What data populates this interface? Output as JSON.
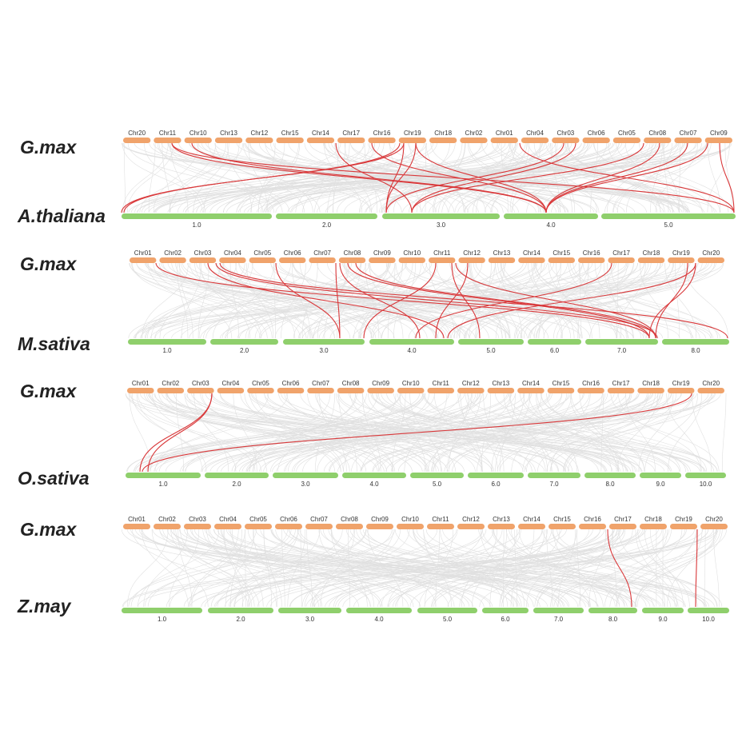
{
  "panels": [
    {
      "top_species": "G.max",
      "bottom_species": "A.thaliana",
      "top_chromosomes": [
        "Chr20",
        "Chr11",
        "Chr10",
        "Chr13",
        "Chr12",
        "Chr15",
        "Chr14",
        "Chr17",
        "Chr16",
        "Chr19",
        "Chr18",
        "Chr02",
        "Chr01",
        "Chr04",
        "Chr03",
        "Chr06",
        "Chr05",
        "Chr08",
        "Chr07",
        "Chr09"
      ],
      "bottom_chromosomes": [
        "1.0",
        "2.0",
        "3.0",
        "4.0",
        "5.0"
      ]
    },
    {
      "top_species": "G.max",
      "bottom_species": "M.sativa",
      "top_chromosomes": [
        "Chr01",
        "Chr02",
        "Chr03",
        "Chr04",
        "Chr05",
        "Chr06",
        "Chr07",
        "Chr08",
        "Chr09",
        "Chr10",
        "Chr11",
        "Chr12",
        "Chr13",
        "Chr14",
        "Chr15",
        "Chr16",
        "Chr17",
        "Chr18",
        "Chr19",
        "Chr20"
      ],
      "bottom_chromosomes": [
        "1.0",
        "2.0",
        "3.0",
        "4.0",
        "5.0",
        "6.0",
        "7.0",
        "8.0"
      ]
    },
    {
      "top_species": "G.max",
      "bottom_species": "O.sativa",
      "top_chromosomes": [
        "Chr01",
        "Chr02",
        "Chr03",
        "Chr04",
        "Chr05",
        "Chr06",
        "Chr07",
        "Chr08",
        "Chr09",
        "Chr10",
        "Chr11",
        "Chr12",
        "Chr13",
        "Chr14",
        "Chr15",
        "Chr16",
        "Chr17",
        "Chr18",
        "Chr19",
        "Chr20"
      ],
      "bottom_chromosomes": [
        "1.0",
        "2.0",
        "3.0",
        "4.0",
        "5.0",
        "6.0",
        "7.0",
        "8.0",
        "9.0",
        "10.0"
      ]
    },
    {
      "top_species": "G.max",
      "bottom_species": "Z.may",
      "top_chromosomes": [
        "Chr01",
        "Chr02",
        "Chr03",
        "Chr04",
        "Chr05",
        "Chr06",
        "Chr07",
        "Chr08",
        "Chr09",
        "Chr10",
        "Chr11",
        "Chr12",
        "Chr13",
        "Chr14",
        "Chr15",
        "Chr16",
        "Chr17",
        "Chr18",
        "Chr19",
        "Chr20"
      ],
      "bottom_chromosomes": [
        "1.0",
        "2.0",
        "3.0",
        "4.0",
        "5.0",
        "6.0",
        "7.0",
        "8.0",
        "9.0",
        "10.0"
      ]
    }
  ]
}
